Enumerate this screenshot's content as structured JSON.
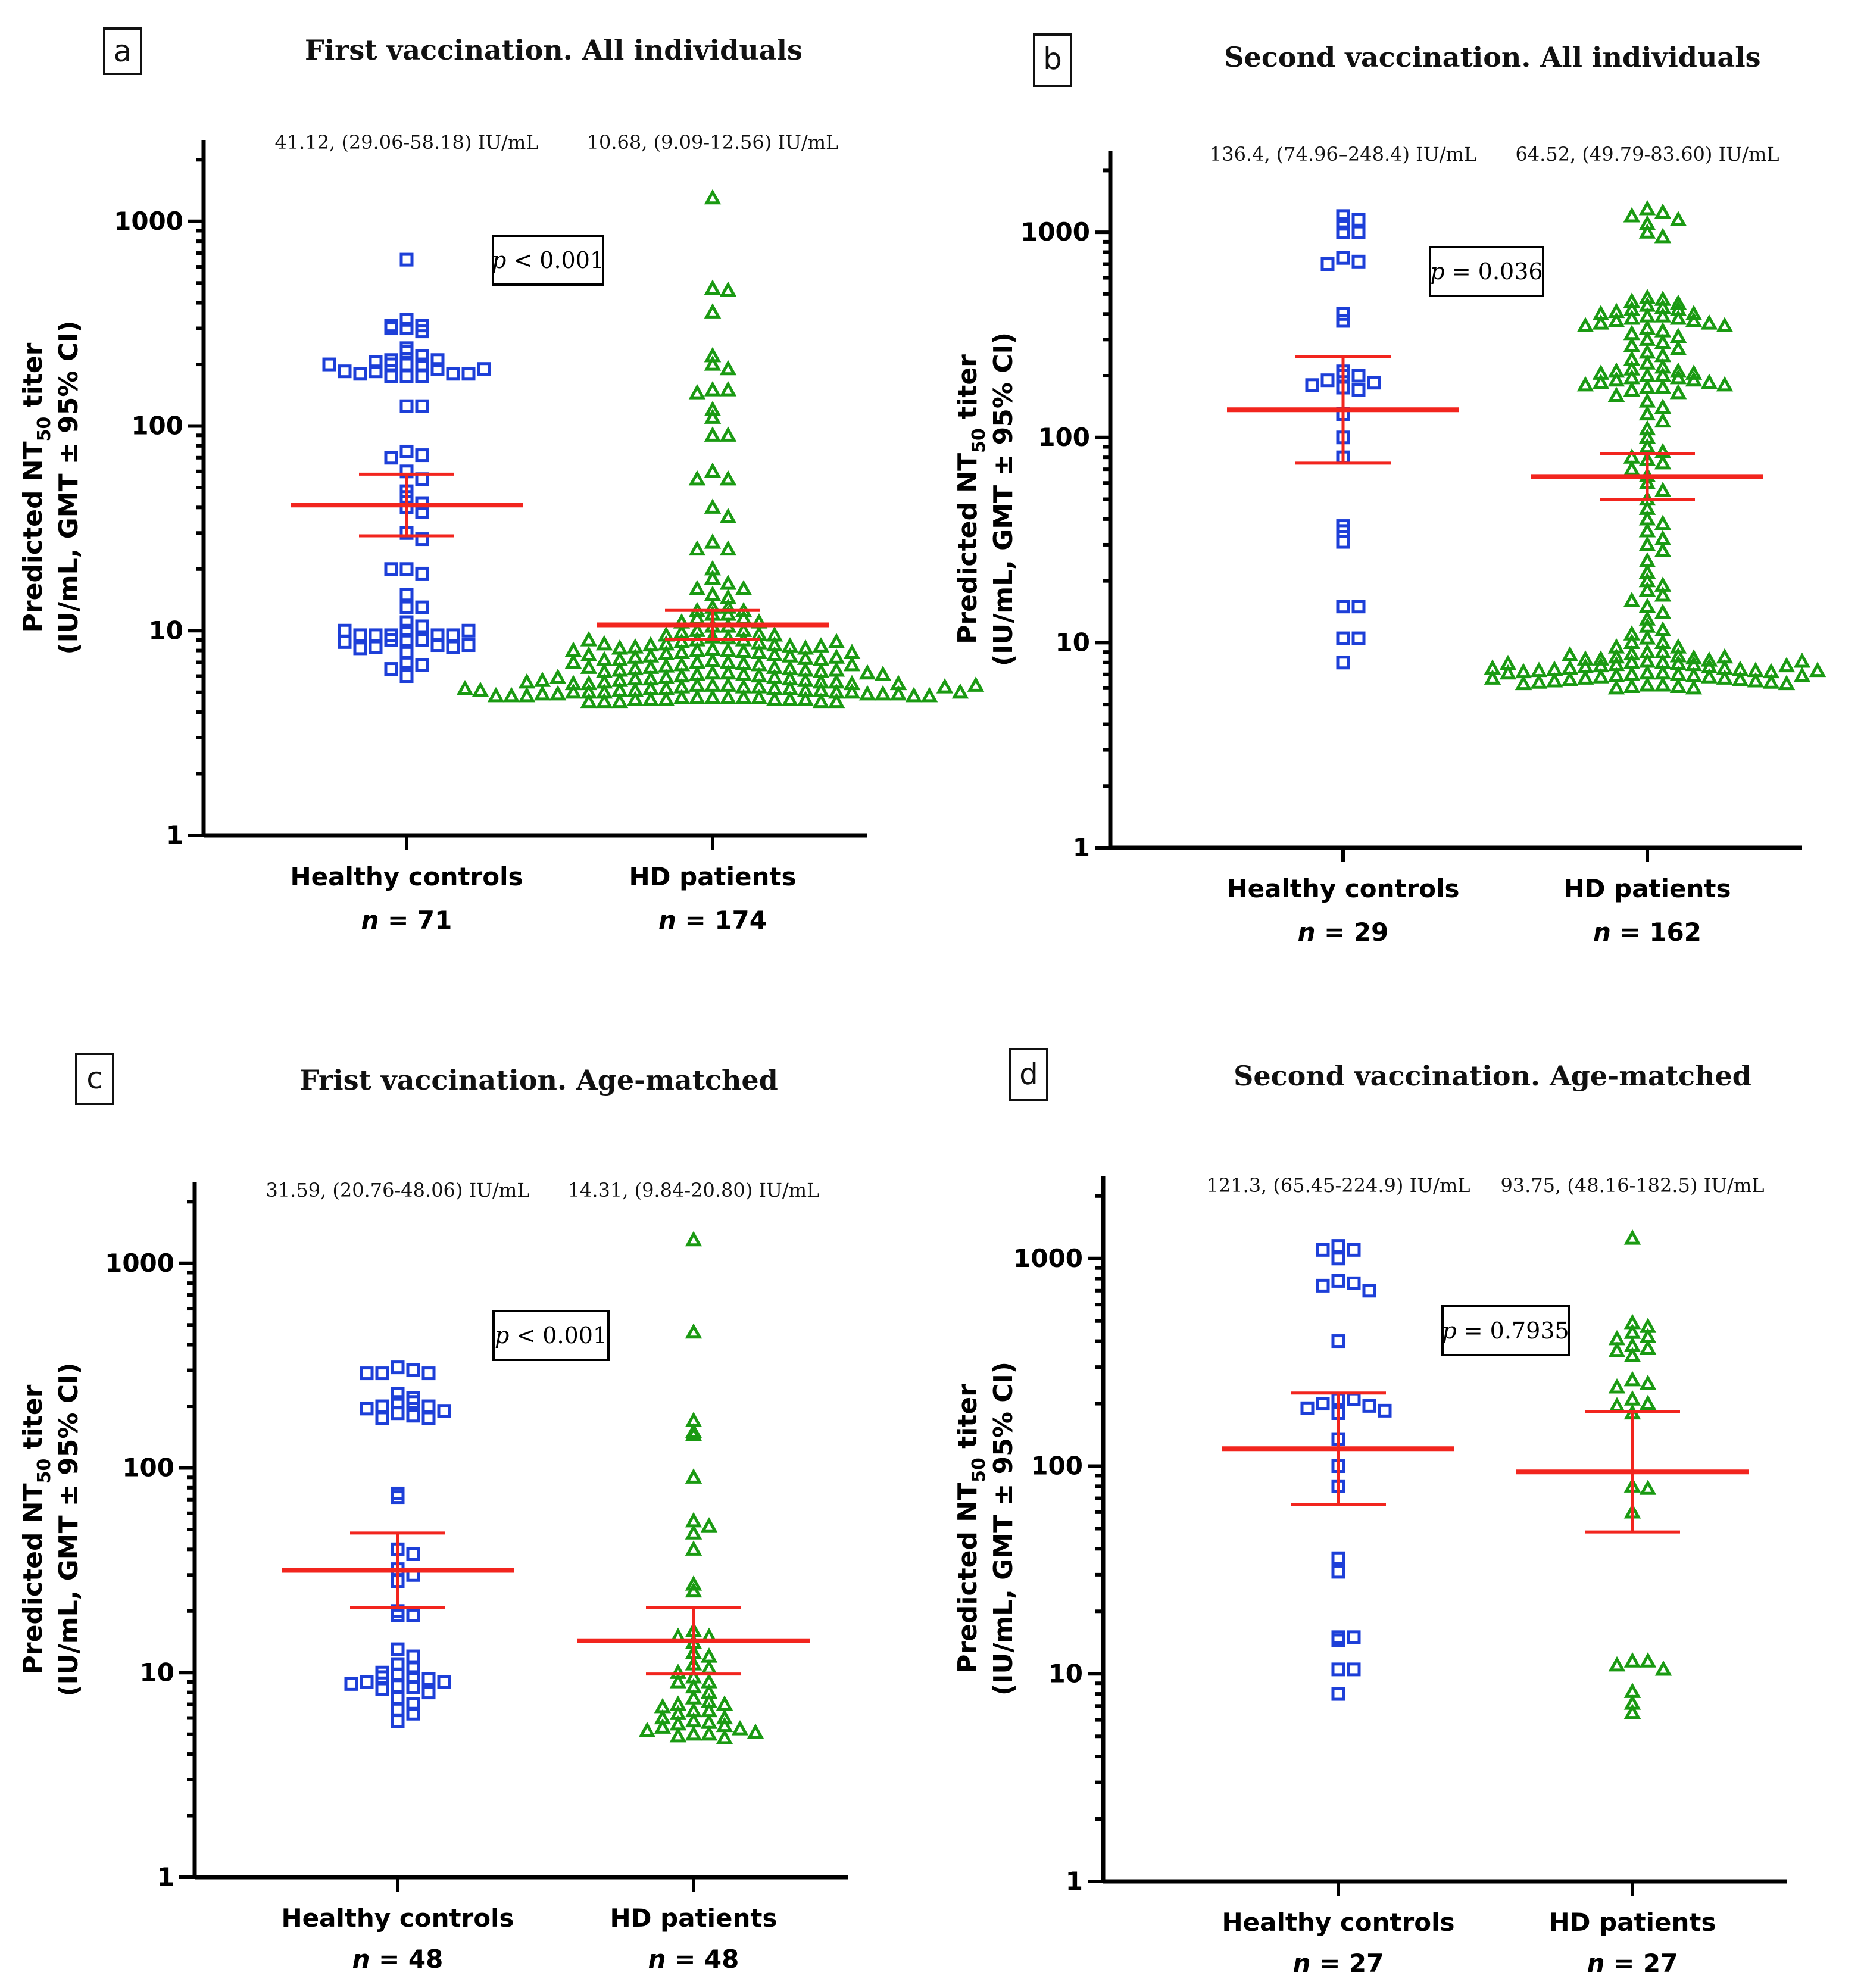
{
  "figure": {
    "ylabel_line1_prefix": "Predicted NT",
    "ylabel_line1_sub": "50",
    "ylabel_line1_suffix": " titer",
    "ylabel_line2": "(IU/mL, GMT ± 95% CI)",
    "group_labels": [
      "Healthy controls",
      "HD patients"
    ],
    "n_italic": "n",
    "colors": {
      "controls": "#1d3fd8",
      "patients": "#1a9a12",
      "gmt": "#f2251e"
    }
  },
  "chart_data": [
    {
      "letter": "a",
      "type": "scatter",
      "title": "First vaccination. All individuals",
      "yscale": "log",
      "ylim": [
        1,
        2500
      ],
      "yticks": [
        1,
        10,
        100,
        1000
      ],
      "ytick_labels": [
        "1",
        "10",
        "100",
        "1000"
      ],
      "categories": [
        "Healthy controls",
        "HD patients"
      ],
      "p_prefix": "p",
      "p_rest": " < 0.001",
      "series": [
        {
          "name": "Healthy controls",
          "marker": "square",
          "n": "= 71",
          "gmt": 41.12,
          "ci": [
            29.06,
            58.18
          ],
          "gmt_label": "41.12, (29.06-58.18) IU/mL",
          "values": [
            650,
            330,
            310,
            300,
            290,
            300,
            310,
            230,
            240,
            220,
            210,
            210,
            200,
            200,
            200,
            190,
            185,
            180,
            175,
            175,
            175,
            180,
            180,
            185,
            190,
            200,
            205,
            125,
            125,
            75,
            72,
            70,
            60,
            55,
            48,
            45,
            42,
            40,
            38,
            30,
            28,
            20,
            19,
            20,
            15,
            13,
            13,
            11,
            10,
            10.5,
            9.5,
            9.5,
            9.5,
            9,
            9,
            9,
            9.5,
            9.5,
            10,
            10,
            8.5,
            8.3,
            8.3,
            8.2,
            8.5,
            8.8,
            7.8,
            7,
            6.8,
            6.5,
            6
          ]
        },
        {
          "name": "HD patients",
          "marker": "triangle",
          "n": "= 174",
          "gmt": 10.68,
          "ci": [
            9.09,
            12.56
          ],
          "gmt_label": "10.68, (9.09-12.56) IU/mL",
          "values": [
            1300,
            470,
            460,
            360,
            220,
            200,
            190,
            150,
            150,
            145,
            120,
            110,
            90,
            90,
            60,
            55,
            55,
            40,
            36,
            27,
            25,
            25,
            20,
            18,
            17,
            16,
            16,
            15,
            14.5,
            13,
            13,
            12.5,
            12.5,
            12,
            12,
            11.5,
            11.5,
            11,
            11,
            10.5,
            10.5,
            10,
            10,
            9.8,
            9.6,
            9.5,
            9.5,
            9.3,
            9.2,
            9,
            9,
            8.8,
            8.7,
            8.6,
            8.5,
            8.5,
            8.4,
            8.3,
            8.2,
            8.1,
            8,
            8,
            7.9,
            7.8,
            7.8,
            7.7,
            7.6,
            7.5,
            7.5,
            7.4,
            7.3,
            7.2,
            7.2,
            7.1,
            7,
            7,
            6.9,
            6.8,
            6.8,
            6.7,
            6.6,
            6.6,
            6.5,
            6.5,
            6.4,
            6.4,
            6.3,
            6.3,
            6.2,
            6.2,
            6.1,
            6.1,
            6,
            6,
            5.9,
            5.9,
            5.8,
            5.8,
            5.8,
            5.7,
            5.7,
            5.6,
            5.6,
            5.6,
            5.5,
            5.5,
            5.5,
            5.4,
            5.4,
            5.4,
            5.3,
            5.3,
            5.3,
            5.2,
            5.2,
            5.2,
            5.2,
            5.1,
            5.1,
            5.1,
            5.1,
            5,
            5,
            5,
            5,
            5,
            4.9,
            4.9,
            4.9,
            4.9,
            4.9,
            4.8,
            4.8,
            4.8,
            4.8,
            4.8,
            4.7,
            4.7,
            4.7,
            4.7,
            4.7,
            4.7,
            4.6,
            4.6,
            4.6,
            4.6,
            4.6,
            4.6,
            4.5,
            4.5,
            4.5,
            4.5,
            4.5,
            6.2,
            6.4,
            6.6,
            6.8,
            7,
            7.2,
            7.4,
            7.6,
            7.8,
            8,
            8.2,
            8.4,
            8.6,
            8.8,
            9,
            5.9,
            6.1,
            5.7,
            5.5,
            5.3,
            5.1,
            5,
            5.2,
            5.4,
            5.6
          ]
        }
      ]
    },
    {
      "letter": "b",
      "type": "scatter",
      "title": "Second vaccination. All individuals",
      "yscale": "log",
      "ylim": [
        1,
        2500
      ],
      "yticks": [
        1,
        10,
        100,
        1000
      ],
      "ytick_labels": [
        "1",
        "10",
        "100",
        "1000"
      ],
      "categories": [
        "Healthy controls",
        "HD patients"
      ],
      "p_prefix": "p",
      "p_rest": " = 0.036",
      "series": [
        {
          "name": "Healthy controls",
          "marker": "square",
          "n": "= 29",
          "gmt": 136.4,
          "ci": [
            74.96,
            248.4
          ],
          "gmt_label": "136.4, (74.96–248.4) IU/mL",
          "values": [
            1200,
            1150,
            1100,
            1000,
            1000,
            750,
            720,
            700,
            400,
            370,
            210,
            200,
            200,
            190,
            185,
            180,
            175,
            170,
            130,
            100,
            80,
            37,
            35,
            31,
            15,
            15,
            10.5,
            10.5,
            8
          ]
        },
        {
          "name": "HD patients",
          "marker": "triangle",
          "n": "= 162",
          "gmt": 64.52,
          "ci": [
            49.79,
            83.6
          ],
          "gmt_label": "64.52, (49.79-83.60) IU/mL",
          "values": [
            1300,
            1250,
            1200,
            1150,
            1100,
            1000,
            950,
            480,
            470,
            460,
            450,
            440,
            430,
            420,
            420,
            410,
            400,
            400,
            390,
            390,
            380,
            380,
            370,
            370,
            360,
            360,
            350,
            350,
            340,
            330,
            320,
            310,
            300,
            290,
            280,
            270,
            260,
            250,
            240,
            230,
            220,
            215,
            210,
            210,
            205,
            205,
            200,
            200,
            195,
            195,
            190,
            190,
            185,
            185,
            180,
            180,
            175,
            175,
            170,
            165,
            160,
            150,
            140,
            130,
            120,
            110,
            100,
            90,
            85,
            80,
            78,
            75,
            70,
            65,
            60,
            55,
            50,
            45,
            40,
            38,
            35,
            32,
            30,
            28,
            25,
            22,
            20,
            19,
            18,
            17,
            16,
            15,
            14,
            13,
            12,
            11.5,
            11,
            10.5,
            10,
            10,
            9.5,
            9.5,
            9,
            9,
            8.8,
            8.6,
            8.5,
            8.4,
            8.3,
            8.2,
            8.1,
            8,
            8,
            7.9,
            7.8,
            7.8,
            7.7,
            7.6,
            7.6,
            7.5,
            7.5,
            7.4,
            7.4,
            7.3,
            7.3,
            7.2,
            7.2,
            7.1,
            7.1,
            7,
            7,
            6.9,
            6.9,
            6.8,
            6.8,
            6.7,
            6.7,
            6.6,
            6.6,
            6.5,
            6.5,
            6.4,
            6.4,
            6.3,
            6.3,
            6.2,
            6.2,
            6.1,
            6.1,
            6,
            6,
            7.7,
            7.9,
            8.1,
            8.3,
            8.5,
            8.7,
            7.5,
            7.3,
            7.1,
            6.9,
            6.7
          ]
        }
      ]
    },
    {
      "letter": "c",
      "type": "scatter",
      "title": "Frist vaccination. Age-matched",
      "yscale": "log",
      "ylim": [
        1,
        2500
      ],
      "yticks": [
        1,
        10,
        100,
        1000
      ],
      "ytick_labels": [
        "1",
        "10",
        "100",
        "1000"
      ],
      "categories": [
        "Healthy controls",
        "HD patients"
      ],
      "p_prefix": "p",
      "p_rest": " < 0.001",
      "series": [
        {
          "name": "Healthy controls",
          "marker": "square",
          "n": "= 48",
          "gmt": 31.59,
          "ci": [
            20.76,
            48.06
          ],
          "gmt_label": "31.59, (20.76-48.06) IU/mL",
          "values": [
            310,
            300,
            290,
            290,
            290,
            230,
            220,
            210,
            210,
            200,
            200,
            195,
            190,
            185,
            180,
            175,
            175,
            75,
            72,
            40,
            38,
            32,
            30,
            28,
            20,
            19,
            19,
            13,
            12,
            11,
            10.5,
            10,
            9.8,
            9.5,
            9.5,
            9.3,
            9,
            9,
            8.8,
            8.6,
            8.5,
            8.3,
            8,
            7.5,
            7,
            6.6,
            6.3,
            5.8
          ]
        },
        {
          "name": "HD patients",
          "marker": "triangle",
          "n": "= 48",
          "gmt": 14.31,
          "ci": [
            9.84,
            20.8
          ],
          "gmt_label": "14.31, (9.84-20.80) IU/mL",
          "values": [
            1300,
            460,
            170,
            150,
            145,
            90,
            55,
            52,
            48,
            40,
            27,
            25,
            16,
            15,
            15,
            14,
            12.5,
            12,
            11,
            10.5,
            10,
            9.5,
            9,
            9,
            8.5,
            8,
            7.5,
            7.2,
            7,
            7,
            6.8,
            6.5,
            6.5,
            6.3,
            6,
            6,
            5.8,
            5.7,
            5.6,
            5.5,
            5.4,
            5.3,
            5.2,
            5.1,
            5,
            5,
            4.9,
            4.8
          ]
        }
      ]
    },
    {
      "letter": "d",
      "type": "scatter",
      "title": "Second vaccination. Age-matched",
      "yscale": "log",
      "ylim": [
        1,
        2500
      ],
      "yticks": [
        1,
        10,
        100,
        1000
      ],
      "ytick_labels": [
        "1",
        "10",
        "100",
        "1000"
      ],
      "categories": [
        "Healthy controls",
        "HD patients"
      ],
      "p_prefix": "p",
      "p_rest": " = 0.7935",
      "series": [
        {
          "name": "Healthy controls",
          "marker": "square",
          "n": "= 27",
          "gmt": 121.3,
          "ci": [
            65.45,
            224.9
          ],
          "gmt_label": "121.3, (65.45-224.9) IU/mL",
          "values": [
            1150,
            1100,
            1100,
            1000,
            780,
            760,
            740,
            700,
            400,
            210,
            210,
            200,
            195,
            190,
            185,
            180,
            135,
            100,
            80,
            36,
            31,
            15,
            15,
            14.5,
            10.5,
            10.5,
            8
          ]
        },
        {
          "name": "HD patients",
          "marker": "triangle",
          "n": "= 27",
          "gmt": 93.75,
          "ci": [
            48.16,
            182.5
          ],
          "gmt_label": "93.75, (48.16-182.5) IU/mL",
          "values": [
            1250,
            490,
            470,
            440,
            420,
            410,
            380,
            370,
            360,
            340,
            260,
            250,
            240,
            210,
            200,
            195,
            180,
            80,
            78,
            60,
            11.5,
            11.5,
            11,
            10.5,
            8.2,
            7.2,
            6.5
          ]
        }
      ]
    }
  ]
}
